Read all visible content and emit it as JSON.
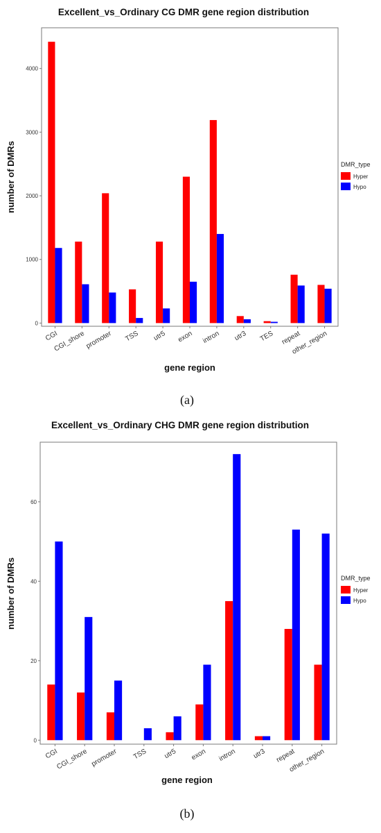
{
  "colors": {
    "hyper": "#ff0000",
    "hypo": "#0000ff"
  },
  "chart_data": [
    {
      "type": "bar",
      "title": "Excellent_vs_Ordinary  CG  DMR  gene region  distribution",
      "xlabel": "gene   region",
      "ylabel": "number   of   DMRs",
      "categories": [
        "CGI",
        "CGI_shore",
        "promoter",
        "TSS",
        "utr5",
        "exon",
        "intron",
        "utr3",
        "TES",
        "repeat",
        "other_region"
      ],
      "series": [
        {
          "name": "Hyper",
          "values": [
            4420,
            1280,
            2040,
            530,
            1280,
            2300,
            3190,
            110,
            30,
            760,
            600
          ]
        },
        {
          "name": "Hypo",
          "values": [
            1180,
            610,
            480,
            80,
            230,
            650,
            1400,
            60,
            20,
            590,
            540
          ]
        }
      ],
      "ylim": [
        -50,
        4640
      ],
      "yticks": [
        0,
        1000,
        2000,
        3000,
        4000
      ],
      "legend": {
        "title": "DMR_type",
        "placement": "right"
      },
      "grid": false,
      "caption": "(a)"
    },
    {
      "type": "bar",
      "title": "Excellent_vs_Ordinary  CHG  DMR  gene region  distribution",
      "xlabel": "gene   region",
      "ylabel": "number   of   DMRs",
      "categories": [
        "CGI",
        "CGI_shore",
        "promoter",
        "TSS",
        "utr5",
        "exon",
        "intron",
        "utr3",
        "repeat",
        "other_region"
      ],
      "series": [
        {
          "name": "Hyper",
          "values": [
            14,
            12,
            7,
            0,
            2,
            9,
            35,
            1,
            28,
            19
          ]
        },
        {
          "name": "Hypo",
          "values": [
            50,
            31,
            15,
            3,
            6,
            19,
            72,
            1,
            53,
            52
          ]
        }
      ],
      "ylim": [
        -1,
        75
      ],
      "yticks": [
        0,
        20,
        40,
        60
      ],
      "legend": {
        "title": "DMR_type",
        "placement": "right"
      },
      "grid": false,
      "caption": "(b)"
    }
  ]
}
